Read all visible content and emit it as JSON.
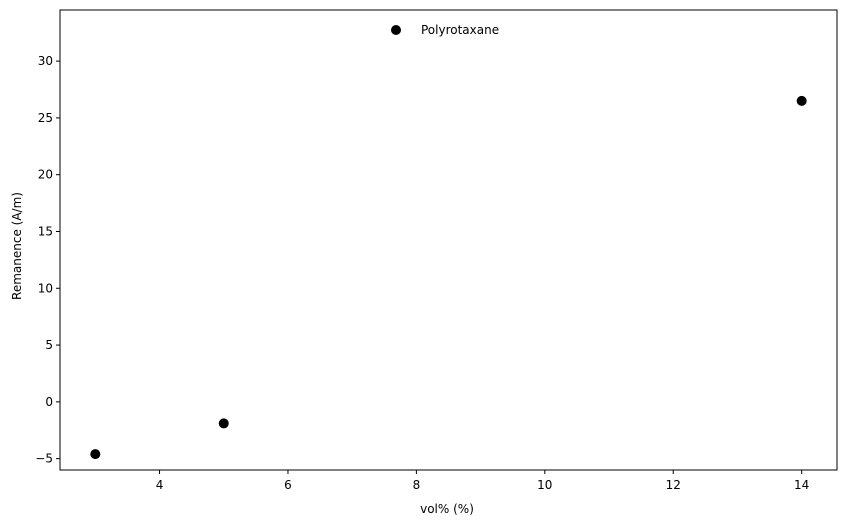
{
  "chart_data": {
    "type": "scatter",
    "title": "",
    "xlabel": "vol% (%)",
    "ylabel": "Remanence (A/m)",
    "xlim": [
      2.45,
      14.55
    ],
    "ylim": [
      -6.0,
      34.5
    ],
    "xticks": [
      4,
      6,
      8,
      10,
      12,
      14
    ],
    "yticks": [
      -5,
      0,
      5,
      10,
      15,
      20,
      25,
      30
    ],
    "grid": false,
    "legend_position": "top-center",
    "series": [
      {
        "name": "Polyrotaxane",
        "color": "#000000",
        "x": [
          3,
          5,
          14
        ],
        "y": [
          -4.6,
          -1.9,
          26.5
        ]
      }
    ]
  }
}
